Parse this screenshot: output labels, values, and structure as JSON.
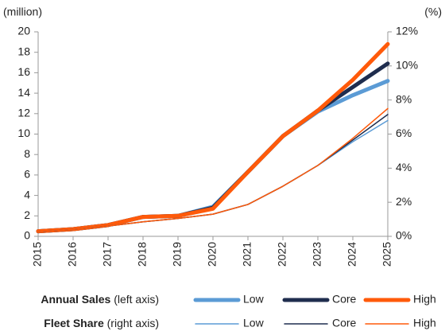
{
  "chart_data": {
    "type": "line",
    "y_label": "(million)",
    "y2_label": "(%)",
    "categories": [
      "2015",
      "2016",
      "2017",
      "2018",
      "2019",
      "2020",
      "2021",
      "2022",
      "2023",
      "2024",
      "2025"
    ],
    "ylim": [
      0,
      20
    ],
    "yticks": [
      0,
      2,
      4,
      6,
      8,
      10,
      12,
      14,
      16,
      18,
      20
    ],
    "y2lim": [
      0,
      12
    ],
    "y2ticks": [
      {
        "value": 0,
        "label": "0%"
      },
      {
        "value": 2,
        "label": "2%"
      },
      {
        "value": 4,
        "label": "4%"
      },
      {
        "value": 6,
        "label": "6%"
      },
      {
        "value": 8,
        "label": "8%"
      },
      {
        "value": 10,
        "label": "10%"
      },
      {
        "value": 12,
        "label": "12%"
      }
    ],
    "legend_groups": [
      {
        "title": "Annual Sales",
        "note": "(left axis)"
      },
      {
        "title": "Fleet Share",
        "note": "(right axis)"
      }
    ],
    "series": [
      {
        "name": "Low",
        "color": "#5b9bd5",
        "width": 5,
        "values": [
          0.5,
          0.7,
          1.1,
          1.9,
          2.0,
          2.9,
          6.3,
          9.8,
          12.2,
          13.8,
          15.2
        ]
      },
      {
        "name": "Core",
        "color": "#1f2d4e",
        "width": 5,
        "values": [
          0.5,
          0.7,
          1.1,
          1.9,
          2.0,
          2.8,
          6.3,
          9.8,
          12.3,
          14.6,
          16.9
        ]
      },
      {
        "name": "High",
        "color": "#ff5a0a",
        "width": 5,
        "values": [
          0.5,
          0.7,
          1.1,
          1.9,
          2.0,
          2.7,
          6.3,
          9.8,
          12.3,
          15.3,
          18.8
        ]
      },
      {
        "name": "Low",
        "color": "#5b9bd5",
        "width": 1.5,
        "axis": "y2",
        "values": [
          0.25,
          0.4,
          0.6,
          0.85,
          1.05,
          1.3,
          1.87,
          2.94,
          4.16,
          5.55,
          6.8
        ]
      },
      {
        "name": "Core",
        "color": "#1f2d4e",
        "width": 1.5,
        "axis": "y2",
        "values": [
          0.25,
          0.4,
          0.6,
          0.85,
          1.05,
          1.3,
          1.87,
          2.94,
          4.16,
          5.65,
          7.15
        ]
      },
      {
        "name": "High",
        "color": "#ff5a0a",
        "width": 1.5,
        "axis": "y2",
        "values": [
          0.25,
          0.4,
          0.6,
          0.85,
          1.05,
          1.3,
          1.87,
          2.94,
          4.16,
          5.75,
          7.5
        ]
      }
    ]
  }
}
